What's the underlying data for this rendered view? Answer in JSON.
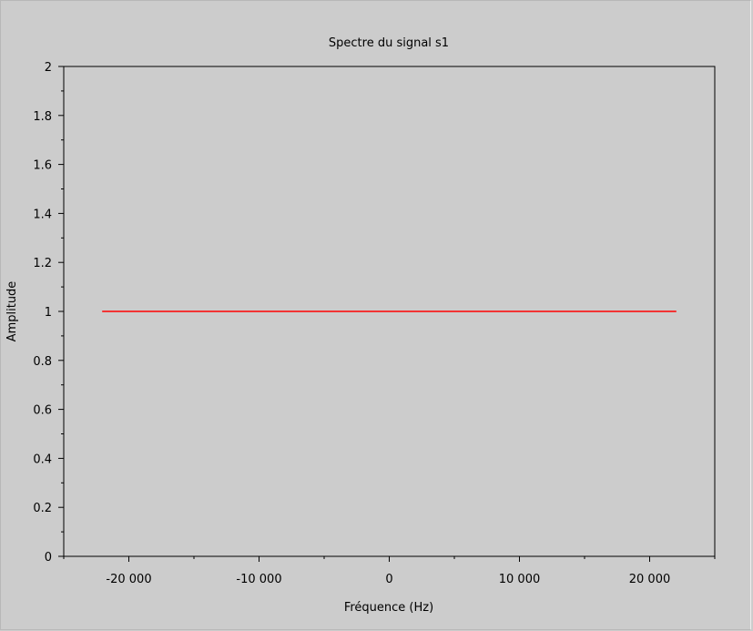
{
  "chart_data": {
    "type": "line",
    "title": "Spectre du signal s1",
    "xlabel": "Fréquence (Hz)",
    "ylabel": "Amplitude",
    "xlim": [
      -25000,
      25000
    ],
    "ylim": [
      0,
      2
    ],
    "x_ticks": [
      -20000,
      -10000,
      0,
      10000,
      20000
    ],
    "x_tick_labels": [
      "-20 000",
      "-10 000",
      "0",
      "10 000",
      "20 000"
    ],
    "y_ticks": [
      0,
      0.2,
      0.4,
      0.6,
      0.8,
      1,
      1.2,
      1.4,
      1.6,
      1.8,
      2
    ],
    "y_tick_labels": [
      "0",
      "0.2",
      "0.4",
      "0.6",
      "0.8",
      "1",
      "1.2",
      "1.4",
      "1.6",
      "1.8",
      "2"
    ],
    "grid": false,
    "series": [
      {
        "x": [
          -22050,
          22050
        ],
        "y": [
          1,
          1
        ],
        "color": "#ff0000"
      }
    ]
  },
  "colors": {
    "background": "#cccccc",
    "axes": "#000000",
    "line": "#ff0000"
  }
}
